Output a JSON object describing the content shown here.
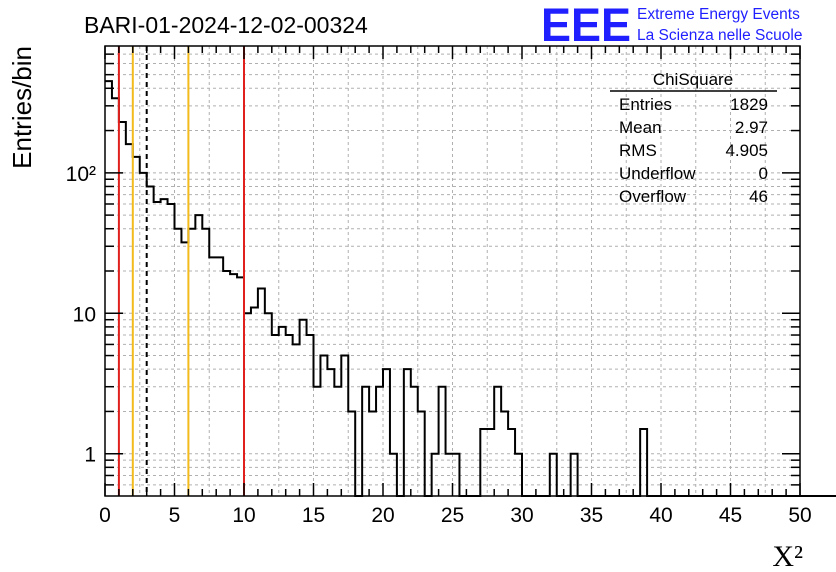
{
  "header": {
    "run_title": "BARI-01-2024-12-02-00324",
    "logo_letters": "EEE",
    "logo_line1": "Extreme Energy Events",
    "logo_line2": "La Scienza nelle Scuole"
  },
  "stats": {
    "title": "ChiSquare",
    "rows": [
      {
        "label": "Entries",
        "value": "1829"
      },
      {
        "label": "Mean",
        "value": "2.97"
      },
      {
        "label": "RMS",
        "value": "4.905"
      },
      {
        "label": "Underflow",
        "value": "0"
      },
      {
        "label": "Overflow",
        "value": "46"
      }
    ]
  },
  "chart_data": {
    "type": "histogram",
    "xlabel": "X²",
    "ylabel": "Entries/bin",
    "xlim": [
      0,
      50
    ],
    "ylim": [
      0.5,
      800
    ],
    "y_scale": "log",
    "grid": true,
    "x_ticks": [
      0,
      5,
      10,
      15,
      20,
      25,
      30,
      35,
      40,
      45,
      50
    ],
    "y_ticks": [
      {
        "value": 1,
        "label": "1"
      },
      {
        "value": 10,
        "label": "10"
      },
      {
        "value": 100,
        "label": "10²"
      }
    ],
    "bin_width": 0.5,
    "bin_counts": [
      450,
      340,
      230,
      160,
      130,
      100,
      80,
      62,
      65,
      60,
      40,
      32,
      40,
      50,
      40,
      25,
      25,
      20,
      19,
      18,
      10,
      11,
      15,
      10,
      7,
      8,
      7,
      6,
      9,
      7,
      3,
      5,
      4,
      3,
      5,
      2,
      0,
      3,
      2,
      3,
      4,
      1,
      0.5,
      4,
      3,
      2,
      0.5,
      1,
      3,
      1,
      1,
      0.5,
      0.5,
      0.5,
      1.5,
      1.5,
      3,
      2,
      1.5,
      1,
      0.5,
      0.5,
      0.5,
      0.5,
      1,
      0.5,
      0.5,
      1,
      0.5,
      0.5,
      0.5,
      0.5,
      0.5,
      0.5,
      0.5,
      0.5,
      0.5,
      1.5,
      0.5,
      0.5,
      0.5,
      0.5,
      0.5,
      0.5,
      0.5,
      0.5,
      0.5,
      0.5,
      0.5,
      0.5,
      0.5,
      0.5,
      0.5,
      0.5,
      0.5,
      0.5,
      0.5,
      0.5,
      0.5,
      0.5,
      0.5,
      0.5,
      0.5,
      0.5,
      0.5,
      0.5,
      0.5,
      0.5,
      0.5,
      0.5,
      0.5,
      0.5,
      0.5,
      0.5,
      0.5,
      0.5,
      0.5,
      0.5,
      0.5,
      0.5
    ],
    "vertical_lines": [
      {
        "x": 1,
        "color": "#e0201c",
        "style": "solid"
      },
      {
        "x": 2,
        "color": "#f3bb1b",
        "style": "solid"
      },
      {
        "x": 3,
        "color": "#000000",
        "style": "dashed"
      },
      {
        "x": 6,
        "color": "#f3bb1b",
        "style": "solid"
      },
      {
        "x": 10,
        "color": "#e0201c",
        "style": "solid"
      }
    ],
    "colors": {
      "histogram": "#000000",
      "grid": "#b0b0b0",
      "brand": "#1f1fff"
    }
  }
}
